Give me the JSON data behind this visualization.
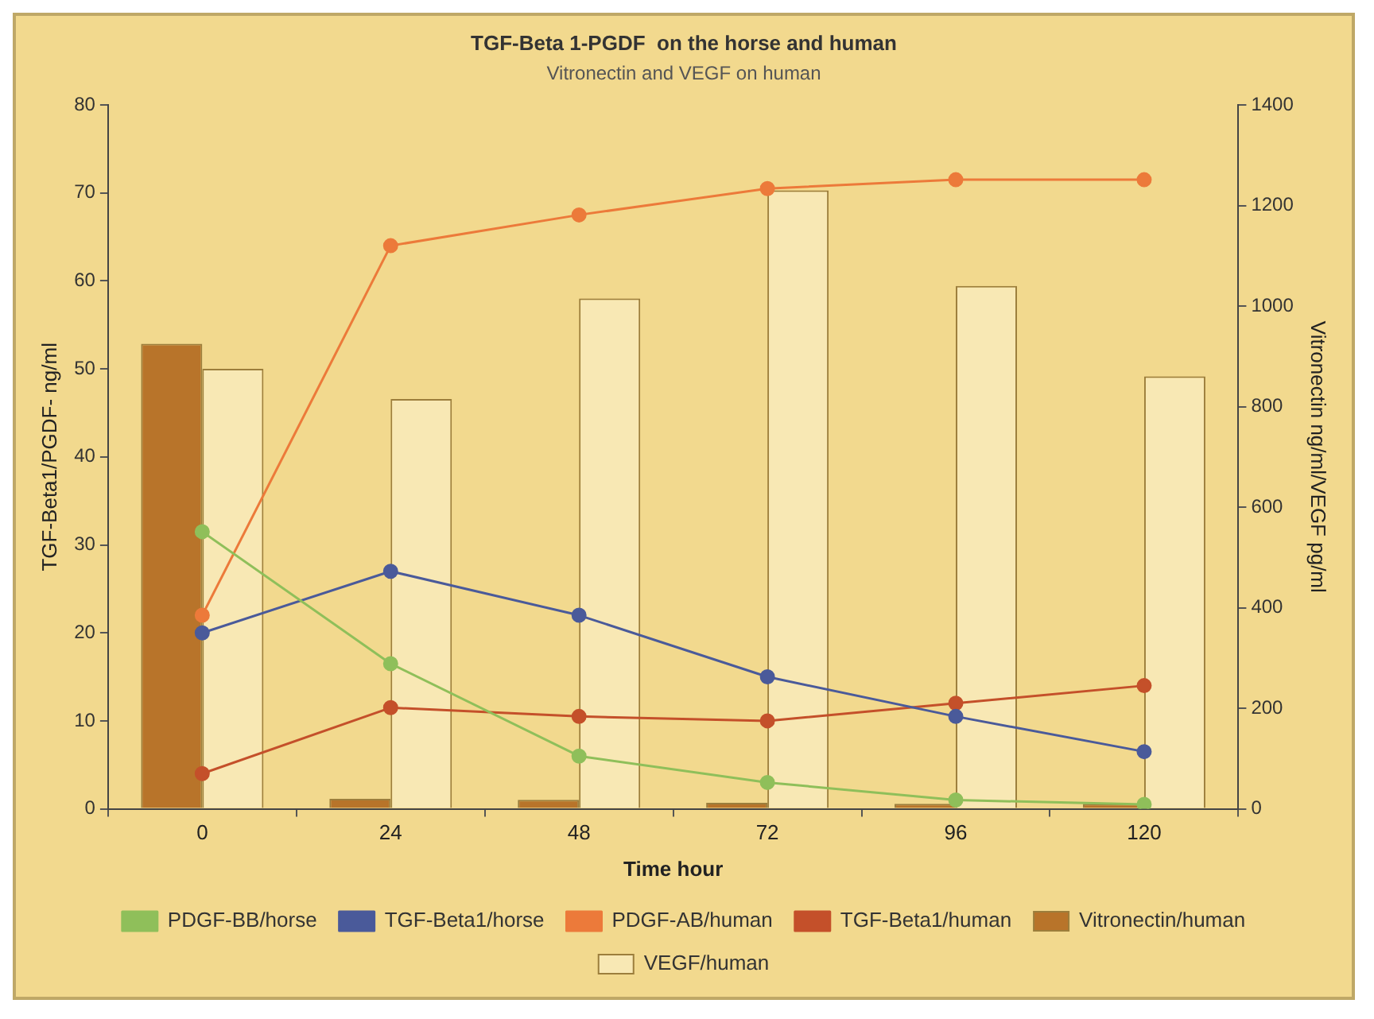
{
  "chart_data": {
    "type": "line",
    "title": "TGF-Beta 1-PGDF  on the horse and human",
    "subtitle": "Vitronectin and VEGF on human",
    "xlabel": "Time hour",
    "ylabel": "TGF-Beta1/PGDF- ng/ml",
    "y2label": "Vitronectin ng/ml/VEGF pg/ml",
    "categories": [
      "0",
      "24",
      "48",
      "72",
      "96",
      "120"
    ],
    "series": [
      {
        "name": "PDGF-BB/horse",
        "color": "#8fbf5a",
        "values": [
          31.5,
          16.5,
          6,
          3,
          1,
          0.5
        ]
      },
      {
        "name": "TGF-Beta1/horse",
        "color": "#4a5a9a",
        "values": [
          20,
          27,
          22,
          15,
          10.5,
          6.5
        ]
      },
      {
        "name": "PDGF-AB/human",
        "color": "#ec7a3a",
        "values": [
          22,
          64,
          67.5,
          70.5,
          71.5,
          71.5
        ]
      },
      {
        "name": "TGF-Beta1/human",
        "color": "#c4502a",
        "values": [
          4,
          11.5,
          10.5,
          10,
          12,
          14
        ]
      },
      {
        "name": "Vitronectin/human",
        "type": "bar",
        "axis": "y2",
        "color": "#b8742a",
        "values": [
          925,
          20,
          18,
          12,
          10,
          10
        ]
      },
      {
        "name": "VEGF/human",
        "type": "bar",
        "axis": "y2",
        "color": "#f8e8b4",
        "values": [
          875,
          815,
          1015,
          1230,
          1040,
          860
        ]
      }
    ],
    "ylim": [
      0,
      80
    ],
    "yticks": [
      0,
      10,
      20,
      30,
      40,
      50,
      60,
      70,
      80
    ],
    "y2lim": [
      0,
      1400
    ],
    "y2ticks": [
      0,
      200,
      400,
      600,
      800,
      1000,
      1200,
      1400
    ],
    "grid": false,
    "legend": "bottom",
    "marker": "circle",
    "line_style": "solid"
  }
}
